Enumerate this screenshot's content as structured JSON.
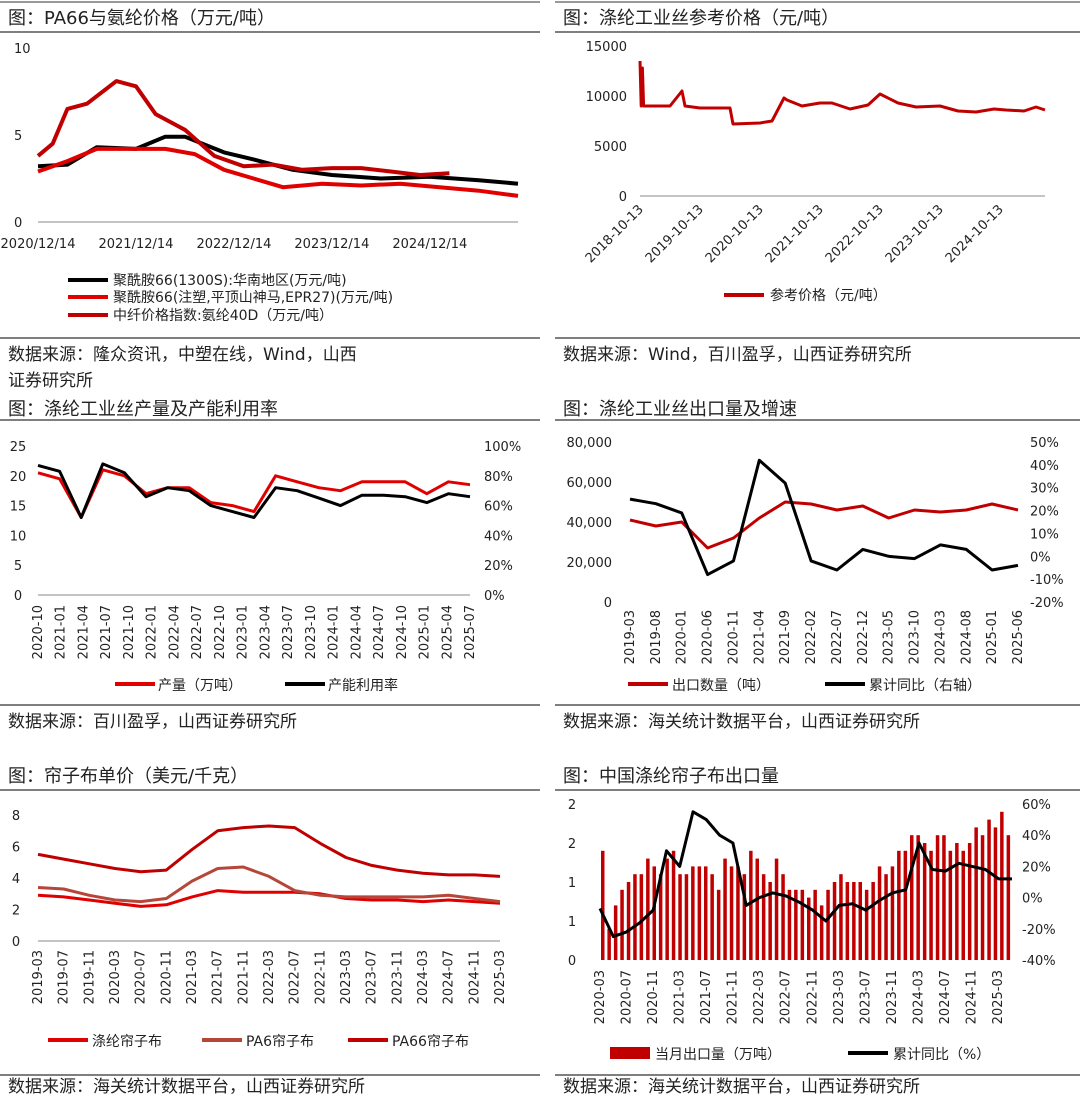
{
  "panels": [
    {
      "id": "pa66",
      "title": "图：PA66与氨纶价格（万元/吨）",
      "source": "数据来源：隆众资讯，中塑在线，Wind，山西证券研究所",
      "chart_data": {
        "type": "line",
        "x_ticks": [
          "2020/12/14",
          "2021/12/14",
          "2022/12/14",
          "2023/12/14",
          "2024/12/14"
        ],
        "ylim": [
          0,
          10
        ],
        "y_ticks": [
          "0",
          "5",
          "10"
        ],
        "series": [
          {
            "name": "聚酰胺66(1300S):华南地区(万元/吨)",
            "color": "#000000",
            "x": [
              0,
              0.3,
              0.6,
              1.0,
              1.3,
              1.5,
              1.9,
              2.2,
              2.6,
              3.0,
              3.5,
              4.0,
              4.5,
              4.9
            ],
            "values": [
              3.2,
              3.3,
              4.3,
              4.2,
              4.9,
              4.9,
              4.0,
              3.6,
              3.0,
              2.7,
              2.5,
              2.6,
              2.4,
              2.2
            ]
          },
          {
            "name": "聚酰胺66(注塑,平顶山神马,EPR27)(万元/吨)",
            "color": "#e00000",
            "x": [
              0,
              0.3,
              0.6,
              1.0,
              1.3,
              1.6,
              1.9,
              2.2,
              2.5,
              2.9,
              3.3,
              3.7,
              4.1,
              4.5,
              4.9
            ],
            "values": [
              2.9,
              3.5,
              4.2,
              4.2,
              4.2,
              3.9,
              3.0,
              2.5,
              2.0,
              2.2,
              2.1,
              2.2,
              2.0,
              1.8,
              1.5
            ]
          },
          {
            "name": "中纤价格指数:氨纶40D（万元/吨）",
            "color": "#c00000",
            "x": [
              0,
              0.15,
              0.3,
              0.5,
              0.8,
              1.0,
              1.2,
              1.5,
              1.8,
              2.1,
              2.4,
              2.7,
              3.0,
              3.3,
              3.6,
              3.9,
              4.2
            ],
            "values": [
              3.8,
              4.5,
              6.5,
              6.8,
              8.1,
              7.8,
              6.2,
              5.3,
              3.8,
              3.2,
              3.3,
              3.0,
              3.1,
              3.1,
              2.9,
              2.7,
              2.8
            ]
          }
        ]
      }
    },
    {
      "id": "industrial_yarn_price",
      "title": "图：涤纶工业丝参考价格（元/吨）",
      "source": "数据来源：Wind，百川盈孚，山西证券研究所",
      "chart_data": {
        "type": "line",
        "x_ticks": [
          "2018-10-13",
          "2019-10-13",
          "2020-10-13",
          "2021-10-13",
          "2022-10-13",
          "2023-10-13",
          "2024-10-13"
        ],
        "ylim": [
          0,
          15000
        ],
        "y_ticks": [
          "0",
          "5000",
          "10000",
          "15000"
        ],
        "series": [
          {
            "name": "参考价格（元/吨）",
            "color": "#c00000",
            "x": [
              0,
              0.02,
              0.04,
              0.06,
              0.1,
              0.5,
              0.7,
              0.75,
              1.0,
              1.5,
              1.55,
              2.0,
              2.2,
              2.4,
              2.45,
              2.7,
              3.0,
              3.2,
              3.5,
              3.8,
              4.0,
              4.3,
              4.6,
              5.0,
              5.3,
              5.6,
              5.9,
              6.1,
              6.4,
              6.6,
              6.75
            ],
            "values": [
              13500,
              9000,
              12800,
              9000,
              9000,
              9000,
              10500,
              9000,
              8800,
              8800,
              7200,
              7300,
              7500,
              9800,
              9600,
              9000,
              9300,
              9300,
              8700,
              9100,
              10200,
              9300,
              8900,
              9000,
              8500,
              8400,
              8700,
              8600,
              8500,
              8900,
              8600
            ]
          }
        ]
      }
    },
    {
      "id": "yarn_output",
      "title": "图：涤纶工业丝产量及产能利用率",
      "source": "数据来源：百川盈孚，山西证券研究所",
      "chart_data": {
        "type": "line",
        "x_ticks": [
          "2020-10",
          "2021-01",
          "2021-04",
          "2021-07",
          "2021-10",
          "2022-01",
          "2022-04",
          "2022-07",
          "2022-10",
          "2023-01",
          "2023-04",
          "2023-07",
          "2023-10",
          "2024-01",
          "2024-04",
          "2024-07",
          "2024-10",
          "2025-01",
          "2025-04",
          "2025-07"
        ],
        "ylim": [
          0,
          25
        ],
        "y_ticks": [
          "0",
          "5",
          "10",
          "15",
          "20",
          "25"
        ],
        "y2_ticks": [
          "0%",
          "20%",
          "40%",
          "60%",
          "80%",
          "100%"
        ],
        "series": [
          {
            "name": "产量（万吨）",
            "color": "#e00000",
            "axis": "left",
            "values": [
              20.5,
              19.5,
              13,
              21,
              20,
              17,
              18,
              18,
              15.5,
              15,
              14,
              20,
              19,
              18,
              17.5,
              19,
              19,
              19,
              17,
              19,
              18.5
            ]
          },
          {
            "name": "产能利用率",
            "color": "#000000",
            "axis": "right",
            "values": [
              87,
              83,
              52,
              88,
              82,
              66,
              72,
              70,
              60,
              56,
              52,
              72,
              70,
              65,
              60,
              67,
              67,
              66,
              62,
              68,
              66
            ]
          }
        ]
      }
    },
    {
      "id": "yarn_export",
      "title": "图：涤纶工业丝出口量及增速",
      "source": "数据来源：海关统计数据平台，山西证券研究所",
      "chart_data": {
        "type": "line",
        "x_ticks": [
          "2019-03",
          "2019-08",
          "2020-01",
          "2020-06",
          "2020-11",
          "2021-04",
          "2021-09",
          "2022-02",
          "2022-07",
          "2022-12",
          "2023-05",
          "2023-10",
          "2024-03",
          "2024-08",
          "2025-01",
          "2025-06"
        ],
        "ylim": [
          0,
          80000
        ],
        "y_ticks": [
          "0",
          "20,000",
          "40,000",
          "60,000",
          "80,000"
        ],
        "y2_ticks": [
          "-20%",
          "-10%",
          "0%",
          "10%",
          "20%",
          "30%",
          "40%",
          "50%"
        ],
        "series": [
          {
            "name": "出口数量（吨）",
            "color": "#c00000",
            "axis": "left",
            "values": [
              41000,
              38000,
              40000,
              27000,
              32000,
              42000,
              50000,
              49000,
              46000,
              48000,
              42000,
              46000,
              45000,
              46000,
              49000,
              46000
            ]
          },
          {
            "name": "累计同比（右轴）",
            "color": "#000000",
            "axis": "right",
            "values": [
              25,
              23,
              19,
              -8,
              -2,
              42,
              32,
              -2,
              -6,
              3,
              0,
              -1,
              5,
              3,
              -6,
              -4
            ]
          }
        ]
      }
    },
    {
      "id": "cord_price",
      "title": "图：帘子布单价（美元/千克）",
      "source": "数据来源：海关统计数据平台，山西证券研究所",
      "chart_data": {
        "type": "line",
        "x_ticks": [
          "2019-03",
          "2019-07",
          "2019-11",
          "2020-03",
          "2020-07",
          "2020-11",
          "2021-03",
          "2021-07",
          "2021-11",
          "2022-03",
          "2022-07",
          "2022-11",
          "2023-03",
          "2023-07",
          "2023-11",
          "2024-03",
          "2024-07",
          "2024-11",
          "2025-03"
        ],
        "ylim": [
          0,
          8
        ],
        "y_ticks": [
          "0",
          "2",
          "4",
          "6",
          "8"
        ],
        "series": [
          {
            "name": "涤纶帘子布",
            "color": "#e00000",
            "values": [
              2.9,
              2.8,
              2.6,
              2.4,
              2.2,
              2.3,
              2.8,
              3.2,
              3.1,
              3.1,
              3.1,
              3.0,
              2.7,
              2.6,
              2.6,
              2.5,
              2.6,
              2.5,
              2.4
            ]
          },
          {
            "name": "PA6帘子布",
            "color": "#b5473a",
            "values": [
              3.4,
              3.3,
              2.9,
              2.6,
              2.5,
              2.7,
              3.8,
              4.6,
              4.7,
              4.1,
              3.2,
              2.9,
              2.8,
              2.8,
              2.8,
              2.8,
              2.9,
              2.7,
              2.5
            ]
          },
          {
            "name": "PA66帘子布",
            "color": "#c00000",
            "values": [
              5.5,
              5.2,
              4.9,
              4.6,
              4.4,
              4.5,
              5.8,
              7.0,
              7.2,
              7.3,
              7.2,
              6.2,
              5.3,
              4.8,
              4.5,
              4.3,
              4.2,
              4.2,
              4.1
            ]
          }
        ]
      }
    },
    {
      "id": "cord_export",
      "title": "图：中国涤纶帘子布出口量",
      "source": "数据来源：海关统计数据平台，山西证券研究所",
      "chart_data": {
        "type": "bar",
        "x_ticks": [
          "2020-03",
          "2020-07",
          "2020-11",
          "2021-03",
          "2021-07",
          "2021-11",
          "2022-03",
          "2022-07",
          "2022-11",
          "2023-03",
          "2023-07",
          "2023-11",
          "2024-03",
          "2024-07",
          "2024-11",
          "2025-03"
        ],
        "y_ticks": [
          "0",
          "1",
          "1",
          "2",
          "2"
        ],
        "y2_ticks": [
          "-40%",
          "-20%",
          "0%",
          "20%",
          "40%",
          "60%"
        ],
        "series": [
          {
            "name": "当月出口量（万吨）",
            "color": "#c00000",
            "values": [
              1.4,
              0.4,
              0.7,
              0.9,
              1.0,
              1.1,
              1.1,
              1.3,
              1.2,
              1.1,
              1.3,
              1.4,
              1.1,
              1.1,
              1.2,
              1.2,
              1.2,
              1.1,
              0.9,
              1.3,
              1.2,
              1.2,
              1.1,
              1.4,
              1.3,
              1.1,
              1.0,
              1.3,
              1.1,
              0.9,
              0.9,
              0.9,
              0.8,
              0.9,
              0.7,
              0.9,
              1.0,
              1.1,
              1.0,
              1.0,
              1.0,
              0.9,
              1.0,
              1.2,
              1.1,
              1.2,
              1.4,
              1.4,
              1.6,
              1.6,
              1.5,
              1.4,
              1.6,
              1.6,
              1.4,
              1.5,
              1.4,
              1.5,
              1.7,
              1.6,
              1.8,
              1.7,
              1.9,
              1.6
            ]
          },
          {
            "name": "累计同比（%）",
            "color": "#000000",
            "axis": "right",
            "values": [
              -7,
              -25,
              -22,
              -16,
              -8,
              30,
              20,
              55,
              50,
              40,
              35,
              -5,
              0,
              3,
              1,
              -3,
              -8,
              -15,
              -5,
              -4,
              -8,
              -2,
              3,
              5,
              35,
              18,
              17,
              22,
              20,
              18,
              12,
              12
            ]
          }
        ]
      }
    }
  ]
}
